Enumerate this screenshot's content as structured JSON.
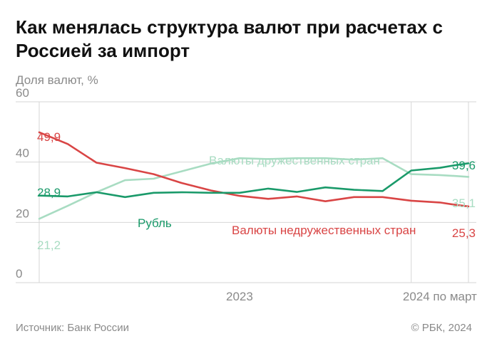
{
  "title": "Как менялась структура валют при расчетах с Россией за импорт",
  "subtitle": "Доля валют, %",
  "source": "Источник: Банк России",
  "copyright": "© РБК, 2024",
  "colors": {
    "friendly": "#a8dcc2",
    "ruble": "#1a9a6a",
    "unfriendly": "#d94545",
    "grid": "#d6d6d6",
    "axis_text": "#8a8a8a"
  },
  "chart_data": {
    "type": "line",
    "ylim": [
      0,
      60
    ],
    "yticks": [
      0,
      20,
      40,
      60
    ],
    "x_tick_labels": [
      {
        "label": "2023",
        "x": 7
      },
      {
        "label": "2024 по март",
        "x": 14
      }
    ],
    "x": [
      0,
      1,
      2,
      3,
      4,
      5,
      6,
      7,
      8,
      9,
      10,
      11,
      12,
      13,
      14,
      14.5,
      15
    ],
    "series": [
      {
        "key": "friendly",
        "name": "Валюты дружественных стран",
        "values": [
          21.2,
          25.5,
          30,
          34,
          34.5,
          37,
          39.5,
          41.3,
          41,
          41.3,
          41.3,
          40.8,
          41.3,
          36,
          35.7,
          35.4,
          35.1
        ]
      },
      {
        "key": "ruble",
        "name": "Рубль",
        "values": [
          28.9,
          28.6,
          30,
          28.4,
          29.8,
          30,
          29.8,
          29.8,
          31.2,
          30.1,
          31.6,
          30.8,
          30.4,
          37.2,
          38.1,
          38.9,
          39.6
        ]
      },
      {
        "key": "unfriendly",
        "name": "Валюты недружественных стран",
        "values": [
          49.9,
          46,
          39.8,
          38,
          36,
          33,
          30.6,
          28.8,
          27.8,
          28.6,
          27,
          28.4,
          28.4,
          27.2,
          26.6,
          25.9,
          25.3
        ]
      }
    ],
    "value_labels": [
      {
        "series": "unfriendly",
        "point": "start",
        "text": "49,9"
      },
      {
        "series": "ruble",
        "point": "start",
        "text": "28,9"
      },
      {
        "series": "friendly",
        "point": "start",
        "text": "21,2"
      },
      {
        "series": "ruble",
        "point": "end",
        "text": "39,6"
      },
      {
        "series": "friendly",
        "point": "end",
        "text": "35,1"
      },
      {
        "series": "unfriendly",
        "point": "end",
        "text": "25,3"
      }
    ],
    "series_labels": [
      {
        "series": "friendly",
        "text": "Валюты дружественных стран"
      },
      {
        "series": "ruble",
        "text": "Рубль"
      },
      {
        "series": "unfriendly",
        "text": "Валюты недружественных стран"
      }
    ]
  }
}
